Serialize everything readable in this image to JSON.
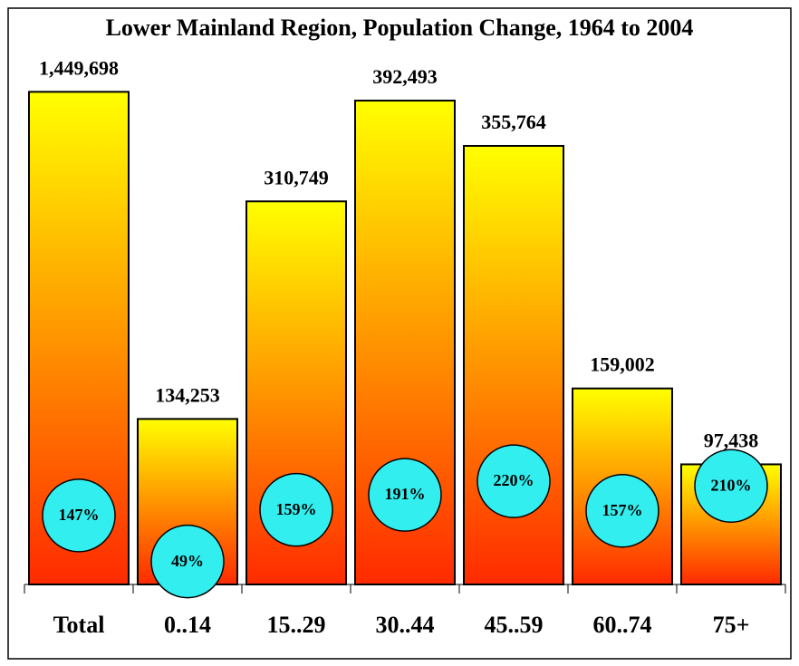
{
  "chart_data": {
    "type": "bar",
    "title": "Lower Mainland Region, Population Change, 1964 to 2004",
    "categories": [
      "Total",
      "0..14",
      "15..29",
      "30..44",
      "45..59",
      "60..74",
      "75+"
    ],
    "series": [
      {
        "axis": "y2",
        "values": [
          1449698,
          null,
          null,
          null,
          null,
          null,
          null
        ],
        "value_labels": [
          "1,449,698",
          null,
          null,
          null,
          null,
          null,
          null
        ]
      },
      {
        "values": [
          null,
          134253,
          310749,
          392493,
          355764,
          159002,
          97438
        ],
        "value_labels": [
          null,
          "134,253",
          "310,749",
          "392,493",
          "355,764",
          "159,002",
          "97,438"
        ]
      },
      {
        "type": "scatter",
        "axis": "y3",
        "color": "#33eeee",
        "values": [
          147,
          49,
          159,
          191,
          220,
          157,
          210
        ],
        "value_labels": [
          "147%",
          "49%",
          "159%",
          "191%",
          "220%",
          "157%",
          "210%"
        ]
      }
    ],
    "ylim": [
      0,
      430000
    ],
    "y2lim": [
      0,
      1560000
    ],
    "y3lim": [
      0,
      1130
    ],
    "gradient": [
      "#ffff00",
      "#ff2a00"
    ]
  }
}
